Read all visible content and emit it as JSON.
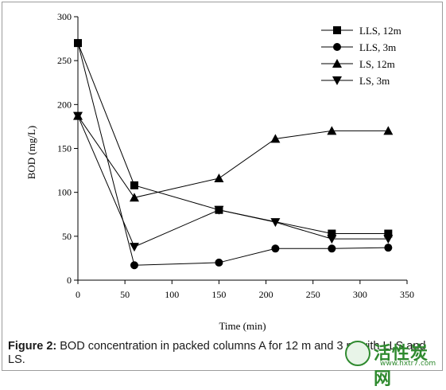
{
  "chart_data": {
    "type": "line",
    "xlabel": "Time (min)",
    "ylabel": "BOD (mg/L)",
    "xlim": [
      0,
      350
    ],
    "ylim": [
      0,
      300
    ],
    "xticks": [
      0,
      50,
      100,
      150,
      200,
      250,
      300,
      350
    ],
    "yticks": [
      0,
      50,
      100,
      150,
      200,
      250,
      300
    ],
    "grid": false,
    "legend_position": "top-right",
    "series": [
      {
        "name": "LLS, 12m",
        "marker": "square",
        "x": [
          0,
          60,
          150,
          270,
          330
        ],
        "y": [
          270,
          108,
          80,
          53,
          53
        ]
      },
      {
        "name": "LLS, 3m",
        "marker": "circle",
        "x": [
          0,
          60,
          150,
          210,
          270,
          330
        ],
        "y": [
          270,
          17,
          20,
          36,
          36,
          37
        ]
      },
      {
        "name": "LS, 12m",
        "marker": "triangle-up",
        "x": [
          0,
          60,
          150,
          210,
          270,
          330
        ],
        "y": [
          187,
          94,
          116,
          161,
          170,
          170
        ]
      },
      {
        "name": "LS, 3m",
        "marker": "triangle-down",
        "x": [
          0,
          60,
          150,
          210,
          270,
          330
        ],
        "y": [
          187,
          38,
          80,
          66,
          47,
          47
        ]
      }
    ]
  },
  "caption": {
    "label": "Figure 2:",
    "text": " BOD concentration in packed columns A for 12 m and 3 m with LLS and LS."
  },
  "watermark": {
    "text": "活性炭网",
    "url": "www.hxtr7.com"
  }
}
